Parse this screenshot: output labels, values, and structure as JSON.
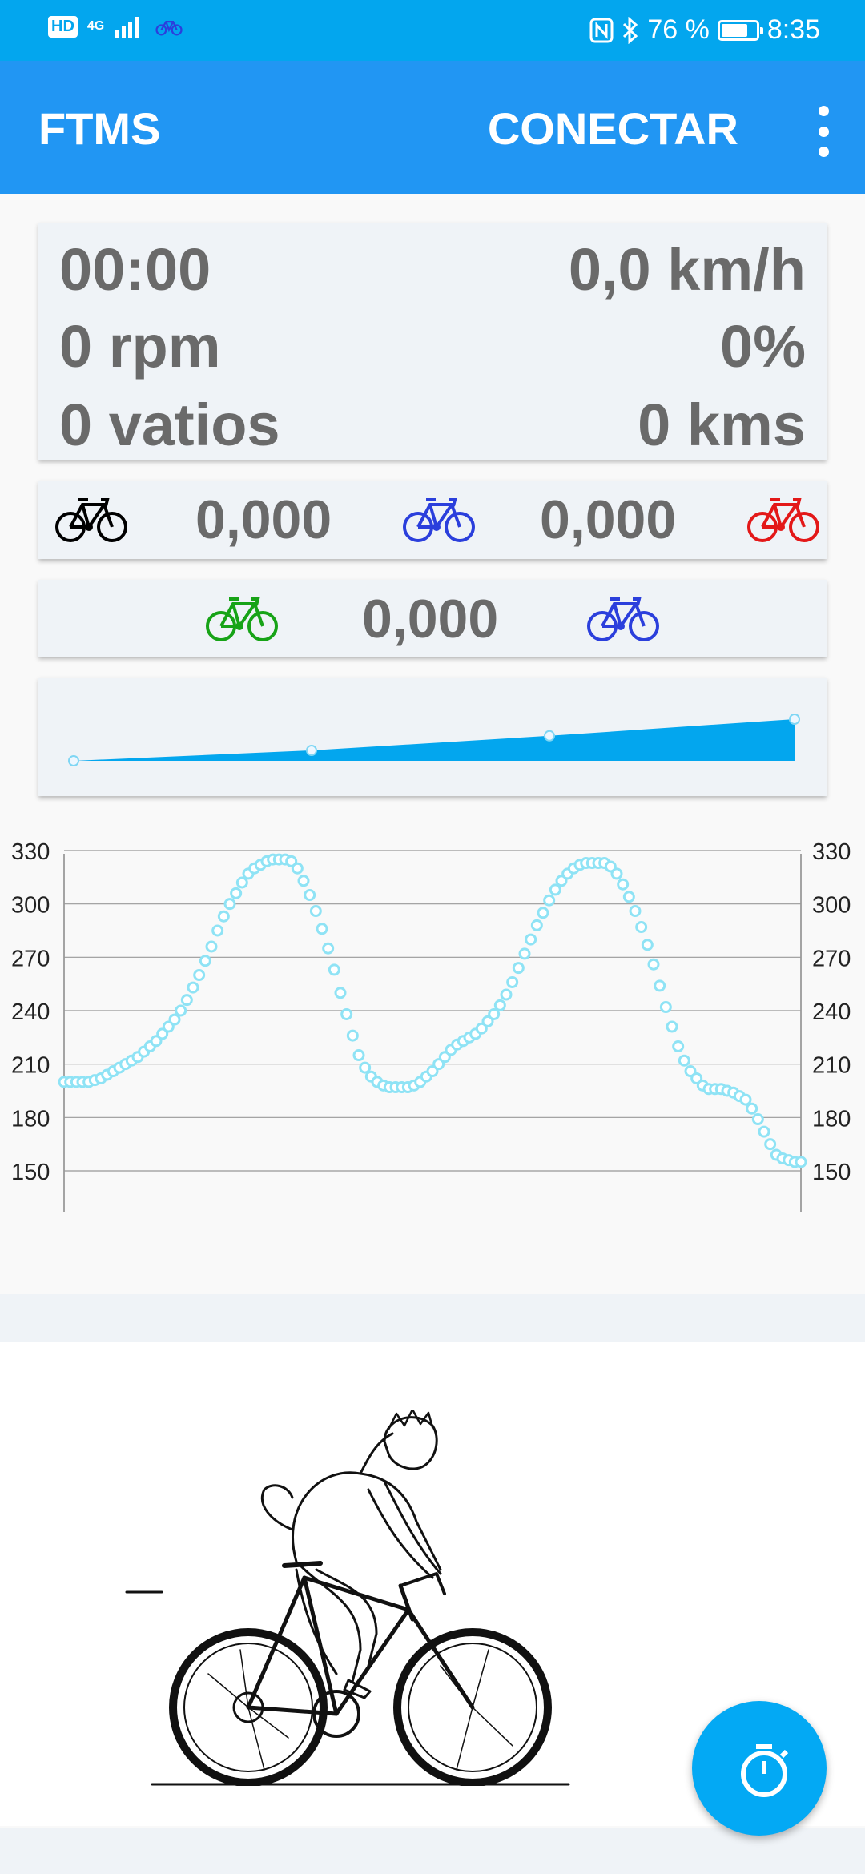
{
  "status_bar": {
    "hd": "HD",
    "network": "4G",
    "battery_text": "76 %",
    "battery_level": 0.76,
    "time": "8:35"
  },
  "app_bar": {
    "title": "FTMS",
    "connect_label": "CONECTAR",
    "more_icon": "more-vert-icon"
  },
  "stats": {
    "time": "00:00",
    "speed": "0,0 km/h",
    "cadence": "0 rpm",
    "incline": "0%",
    "power": "0 vatios",
    "distance": "0 kms"
  },
  "race": {
    "row1": {
      "gap_a": "0,000",
      "gap_b": "0,000"
    },
    "row2": {
      "gap": "0,000"
    },
    "bike_colors": {
      "black": "#000000",
      "blue": "#2b3fdc",
      "red": "#e31818",
      "green": "#17a317"
    }
  },
  "profile_mini": {
    "points": [
      0,
      0.33,
      0.66,
      1.0
    ],
    "values": [
      0,
      0.25,
      0.6,
      1.0
    ],
    "color": "#03a6ee"
  },
  "chart_data": {
    "type": "line",
    "title": "",
    "xlabel": "",
    "ylabel": "",
    "ylim": [
      150,
      330
    ],
    "yticks": [
      330,
      300,
      270,
      240,
      210,
      180,
      150
    ],
    "grid": true,
    "point_color": "#8fe3f5",
    "series": [
      {
        "values": [
          200,
          200,
          200,
          200,
          200,
          201,
          202,
          204,
          206,
          208,
          210,
          212,
          214,
          217,
          220,
          223,
          227,
          231,
          235,
          240,
          246,
          253,
          260,
          268,
          276,
          285,
          293,
          300,
          306,
          312,
          317,
          320,
          322,
          324,
          325,
          325,
          325,
          324,
          320,
          313,
          305,
          296,
          286,
          275,
          263,
          250,
          238,
          226,
          215,
          208,
          203,
          200,
          198,
          197,
          197,
          197,
          197,
          198,
          200,
          203,
          206,
          210,
          214,
          218,
          221,
          223,
          225,
          227,
          230,
          234,
          238,
          243,
          249,
          256,
          264,
          272,
          280,
          288,
          295,
          302,
          308,
          313,
          317,
          320,
          322,
          323,
          323,
          323,
          323,
          321,
          317,
          311,
          304,
          296,
          287,
          277,
          266,
          254,
          242,
          231,
          220,
          212,
          206,
          202,
          198,
          196,
          196,
          196,
          195,
          194,
          192,
          190,
          185,
          179,
          172,
          165,
          159,
          157,
          156,
          155,
          155
        ]
      }
    ]
  },
  "cyclist_image": "cyclist-drawing",
  "fab": {
    "icon": "stopwatch-icon"
  }
}
